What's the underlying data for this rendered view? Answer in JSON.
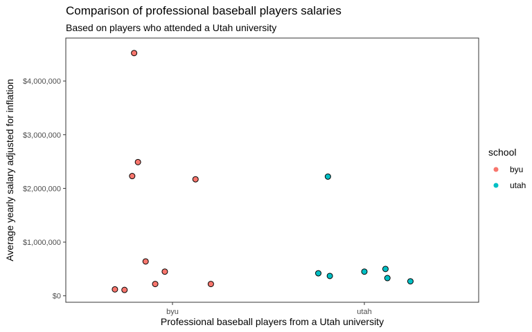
{
  "chart_data": {
    "type": "scatter",
    "title": "Comparison of professional baseball players salaries",
    "subtitle": "Based on players who attended a Utah university",
    "xlabel": "Professional baseball players from a Utah university",
    "ylabel": "Average yearly salary adjusted for inflation",
    "categories": [
      "byu",
      "utah"
    ],
    "ylim": [
      -120000,
      4800000
    ],
    "y_ticks": [
      {
        "value": 0,
        "label": "$0"
      },
      {
        "value": 1000000,
        "label": "$1,000,000"
      },
      {
        "value": 2000000,
        "label": "$2,000,000"
      },
      {
        "value": 3000000,
        "label": "$3,000,000"
      },
      {
        "value": 4000000,
        "label": "$4,000,000"
      }
    ],
    "grid": false,
    "legend": {
      "title": "school",
      "position": "right"
    },
    "series": [
      {
        "name": "byu",
        "color": "#F8766D",
        "points": [
          {
            "x": -0.2,
            "y": 4520000
          },
          {
            "x": -0.18,
            "y": 2490000
          },
          {
            "x": -0.21,
            "y": 2230000
          },
          {
            "x": 0.12,
            "y": 2170000
          },
          {
            "x": -0.14,
            "y": 640000
          },
          {
            "x": -0.04,
            "y": 450000
          },
          {
            "x": -0.09,
            "y": 220000
          },
          {
            "x": 0.2,
            "y": 220000
          },
          {
            "x": -0.3,
            "y": 120000
          },
          {
            "x": -0.25,
            "y": 110000
          }
        ]
      },
      {
        "name": "utah",
        "color": "#00BFC4",
        "points": [
          {
            "x": 0.81,
            "y": 2220000
          },
          {
            "x": 0.76,
            "y": 420000
          },
          {
            "x": 0.82,
            "y": 370000
          },
          {
            "x": 1.0,
            "y": 450000
          },
          {
            "x": 1.11,
            "y": 500000
          },
          {
            "x": 1.12,
            "y": 330000
          },
          {
            "x": 1.24,
            "y": 270000
          }
        ]
      }
    ]
  }
}
